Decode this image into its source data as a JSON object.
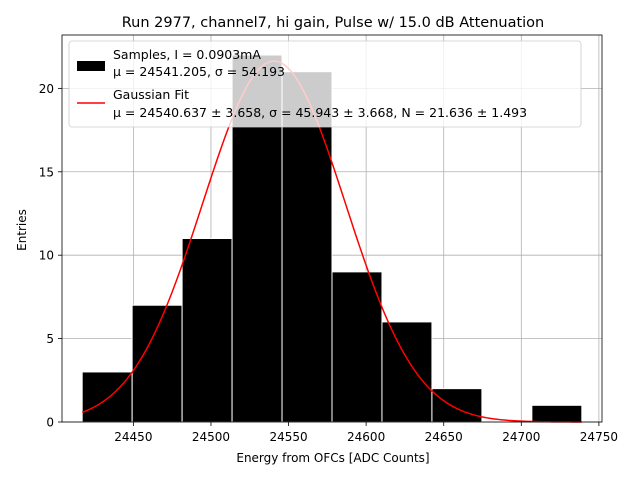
{
  "chart_data": {
    "type": "bar",
    "title": "Run 2977, channel7, hi gain, Pulse w/ 15.0 dB Attenuation",
    "xlabel": "Energy from OFCs [ADC Counts]",
    "ylabel": "Entries",
    "xlim": [
      24404,
      24752
    ],
    "ylim": [
      0,
      23.2
    ],
    "xticks": [
      24450,
      24500,
      24550,
      24600,
      24650,
      24700,
      24750
    ],
    "yticks": [
      0,
      5,
      10,
      15,
      20
    ],
    "grid": true,
    "legend_position": "top-left",
    "histogram": {
      "name_line1": "Samples, I = 0.0903mA",
      "name_line2": "μ = 24541.205, σ = 54.193",
      "color": "#000000",
      "edge_color": "#ffffff",
      "bin_edges": [
        24417,
        24449.2,
        24481.4,
        24513.6,
        24545.8,
        24578.0,
        24610.2,
        24642.4,
        24674.6,
        24706.8,
        24739.0
      ],
      "values": [
        3,
        7,
        11,
        22,
        21,
        9,
        6,
        2,
        0,
        1
      ]
    },
    "fit": {
      "name_line1": "Gaussian Fit",
      "name_line2": "μ = 24540.637 ± 3.658, σ = 45.943 ± 3.668, N = 21.636 ± 1.493",
      "color": "#ff0000",
      "mu": 24540.637,
      "sigma": 45.943,
      "amplitude": 21.636,
      "x_range": [
        24417,
        24739
      ]
    }
  }
}
